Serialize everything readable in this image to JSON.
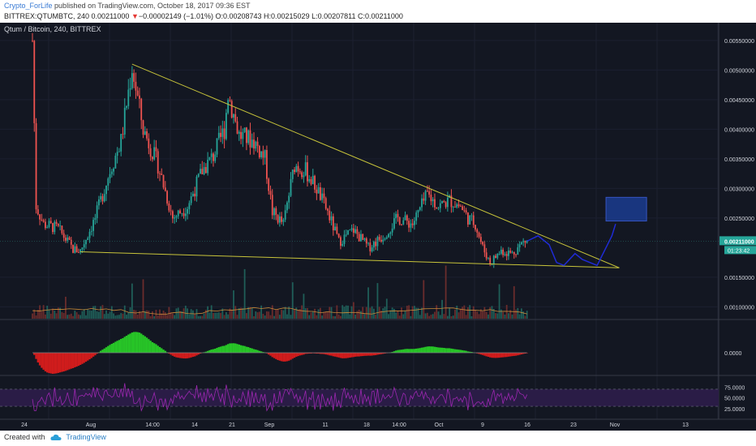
{
  "header": {
    "author": "Crypto_ForLife",
    "published_text": "published on TradingView.com, October 18, 2017 09:36 EST",
    "symbol": "BITTREX:QTUMBTC, 240",
    "last": "0.00211000",
    "change_arrow": "▼",
    "change": "−0.00002149 (−1.01%)",
    "ohlc": "O:0.00208743 H:0.00215029 L:0.00207811 C:0.00211000"
  },
  "chart_label": "Qtum / Bitcoin, 240, BITTREX",
  "footer": {
    "created_with": "Created with",
    "brand": "TradingView"
  },
  "colors": {
    "background": "#131722",
    "up": "#26a69a",
    "down": "#ef5350",
    "trendline": "#c8c43a",
    "projection": "#1f2bd6",
    "target_box": "#1a3a8a",
    "macd_up": "#27c427",
    "macd_down": "#d01c1c",
    "rsi_line": "#9c27b0",
    "rsi_band": "#2a1c46"
  },
  "chart_data": {
    "type": "candlestick",
    "price_axis": {
      "ticks": [
        "0.00550000",
        "0.00500000",
        "0.00450000",
        "0.00400000",
        "0.00350000",
        "0.00300000",
        "0.00250000",
        "0.00150000",
        "0.00100000"
      ],
      "range": [
        0.0008,
        0.0058
      ],
      "last_price_label": "0.00211000",
      "countdown_label": "01:23:42"
    },
    "x_axis": {
      "ticks": [
        "24",
        "Aug",
        "14:00",
        "14",
        "21",
        "Sep",
        "11",
        "18",
        "14:00",
        "Oct",
        "9",
        "16",
        "23",
        "Nov",
        "13"
      ]
    },
    "price_path": [
      [
        0.0,
        0.0055
      ],
      [
        0.5,
        0.0027
      ],
      [
        1.5,
        0.0024
      ],
      [
        3.5,
        0.00232
      ],
      [
        5.5,
        0.00197
      ],
      [
        6.5,
        0.00195
      ],
      [
        8.5,
        0.0025
      ],
      [
        10.5,
        0.0033
      ],
      [
        12.0,
        0.0038
      ],
      [
        13.5,
        0.00505
      ],
      [
        15.0,
        0.004
      ],
      [
        17.0,
        0.0034
      ],
      [
        19.0,
        0.0025
      ],
      [
        21.0,
        0.0027
      ],
      [
        23.0,
        0.0033
      ],
      [
        24.5,
        0.00355
      ],
      [
        26.0,
        0.004
      ],
      [
        26.5,
        0.0046
      ],
      [
        28.0,
        0.0039
      ],
      [
        30.0,
        0.0038
      ],
      [
        31.5,
        0.0035
      ],
      [
        32.5,
        0.0026
      ],
      [
        34.0,
        0.0024
      ],
      [
        35.5,
        0.0034
      ],
      [
        37.0,
        0.0033
      ],
      [
        38.5,
        0.003
      ],
      [
        40.0,
        0.0026
      ],
      [
        41.5,
        0.0021
      ],
      [
        43.5,
        0.0023
      ],
      [
        45.5,
        0.002
      ],
      [
        47.5,
        0.0022
      ],
      [
        49.5,
        0.0025
      ],
      [
        51.5,
        0.0024
      ],
      [
        53.5,
        0.0029
      ],
      [
        55.0,
        0.0027
      ],
      [
        56.5,
        0.0028
      ],
      [
        58.0,
        0.0027
      ],
      [
        59.0,
        0.0025
      ],
      [
        60.0,
        0.0024
      ],
      [
        61.0,
        0.002
      ],
      [
        62.0,
        0.00175
      ],
      [
        63.5,
        0.00195
      ],
      [
        65.0,
        0.0019
      ],
      [
        66.5,
        0.0021
      ],
      [
        67.0,
        0.00211
      ]
    ],
    "macd": {
      "label": "0.0000"
    },
    "rsi": {
      "ticks": [
        "75.0000",
        "50.0000",
        "25.0000"
      ],
      "range": [
        0,
        100
      ],
      "band": [
        30,
        70
      ]
    },
    "annotations": {
      "upper_trendline": [
        [
          13.5,
          0.0051
        ],
        [
          79.5,
          0.00166
        ]
      ],
      "lower_trendline": [
        [
          6.5,
          0.00193
        ],
        [
          79.5,
          0.00166
        ]
      ],
      "projection_path": [
        [
          67.0,
          0.00211
        ],
        [
          68.5,
          0.0022
        ],
        [
          70.0,
          0.00205
        ],
        [
          71.0,
          0.00175
        ],
        [
          72.0,
          0.0017
        ],
        [
          73.5,
          0.0019
        ],
        [
          74.5,
          0.0018
        ],
        [
          76.5,
          0.0017
        ],
        [
          78.5,
          0.0022
        ],
        [
          79.0,
          0.0024
        ]
      ],
      "target_box": {
        "x": [
          77.7,
          83.2
        ],
        "y": [
          0.00245,
          0.00285
        ]
      }
    }
  }
}
